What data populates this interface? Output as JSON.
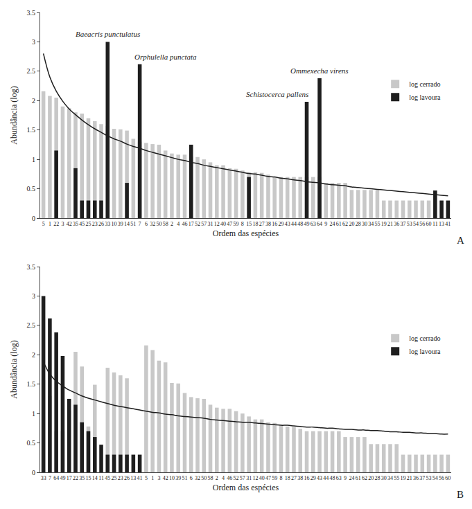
{
  "chart_data": [
    {
      "type": "bar",
      "title": "A",
      "x_label": "Ordem das espécies",
      "y_label": "Abundância (log)",
      "categories": [
        "5",
        "1",
        "22",
        "3",
        "42",
        "35",
        "45",
        "25",
        "23",
        "26",
        "33",
        "10",
        "39",
        "14",
        "51",
        "7",
        "6",
        "32",
        "50",
        "58",
        "2",
        "4",
        "46",
        "17",
        "52",
        "57",
        "31",
        "12",
        "40",
        "47",
        "59",
        "8",
        "15",
        "18",
        "27",
        "38",
        "16",
        "29",
        "43",
        "44",
        "48",
        "49",
        "63",
        "64",
        "9",
        "24",
        "61",
        "62",
        "20",
        "28",
        "30",
        "34",
        "55",
        "19",
        "21",
        "36",
        "37",
        "53",
        "54",
        "56",
        "60",
        "11",
        "13",
        "41"
      ],
      "series": [
        {
          "name": "log cerrado",
          "color": "#c8c8c8",
          "values": [
            2.16,
            2.08,
            2.05,
            1.9,
            1.87,
            1.8,
            1.78,
            1.7,
            1.65,
            1.6,
            1.57,
            1.52,
            1.51,
            1.49,
            1.35,
            1.3,
            1.28,
            1.26,
            1.25,
            1.15,
            1.1,
            1.08,
            1.08,
            1.05,
            1.04,
            1.0,
            0.95,
            0.9,
            0.9,
            0.85,
            0.84,
            0.81,
            0.78,
            0.78,
            0.77,
            0.74,
            0.7,
            0.7,
            0.7,
            0.7,
            0.7,
            0.7,
            0.7,
            0.7,
            0.6,
            0.6,
            0.6,
            0.6,
            0.48,
            0.48,
            0.48,
            0.48,
            0.48,
            0.3,
            0.3,
            0.3,
            0.3,
            0.3,
            0.3,
            0.3,
            0.3,
            0,
            0,
            0
          ]
        },
        {
          "name": "log lavoura",
          "color": "#1e1e1e",
          "values": [
            0,
            0,
            1.15,
            0,
            0,
            0.85,
            0.3,
            0.3,
            0.3,
            0.3,
            3.0,
            0,
            0,
            0.6,
            0,
            2.62,
            0,
            0,
            0,
            0,
            0,
            0,
            0,
            1.25,
            0,
            0,
            0,
            0,
            0,
            0,
            0,
            0,
            0.7,
            0,
            0,
            0,
            0,
            0,
            0,
            0,
            0,
            1.98,
            0,
            2.38,
            0,
            0,
            0,
            0,
            0,
            0,
            0,
            0,
            0,
            0,
            0,
            0,
            0,
            0,
            0,
            0,
            0,
            0.47,
            0.3,
            0.3
          ]
        },
        {
          "type": "line",
          "color": "#1e1e1e",
          "values": [
            2.8,
            2.4,
            2.16,
            1.99,
            1.86,
            1.76,
            1.67,
            1.59,
            1.52,
            1.46,
            1.4,
            1.35,
            1.31,
            1.26,
            1.22,
            1.19,
            1.15,
            1.12,
            1.09,
            1.06,
            1.03,
            1.0,
            0.98,
            0.95,
            0.93,
            0.9,
            0.88,
            0.86,
            0.84,
            0.82,
            0.8,
            0.78,
            0.76,
            0.75,
            0.73,
            0.71,
            0.7,
            0.68,
            0.67,
            0.65,
            0.64,
            0.62,
            0.61,
            0.6,
            0.58,
            0.57,
            0.56,
            0.55,
            0.53,
            0.52,
            0.51,
            0.5,
            0.49,
            0.48,
            0.47,
            0.46,
            0.45,
            0.44,
            0.43,
            0.42,
            0.41,
            0.4,
            0.39,
            0.38
          ]
        }
      ],
      "annotations": [
        {
          "text": "Baeacris punctulatus",
          "category": "33"
        },
        {
          "text": "Orphulella punctata",
          "category": "7"
        },
        {
          "text": "Schistocerca pallens",
          "category": "49"
        },
        {
          "text": "Ommexecha virens",
          "category": "64"
        }
      ],
      "ylim": [
        0,
        3.5
      ],
      "yticks": [
        0,
        0.5,
        1,
        1.5,
        2,
        2.5,
        3,
        3.5
      ],
      "grid": false,
      "legend": "right"
    },
    {
      "type": "bar",
      "title": "B",
      "x_label": "Ordem das espécies",
      "y_label": "Abundância (log)",
      "categories": [
        "33",
        "7",
        "64",
        "49",
        "17",
        "22",
        "35",
        "15",
        "14",
        "11",
        "45",
        "25",
        "23",
        "26",
        "13",
        "41",
        "5",
        "1",
        "3",
        "42",
        "10",
        "39",
        "51",
        "6",
        "32",
        "50",
        "58",
        "2",
        "4",
        "46",
        "52",
        "57",
        "31",
        "12",
        "40",
        "47",
        "59",
        "8",
        "18",
        "27",
        "38",
        "16",
        "29",
        "43",
        "44",
        "48",
        "63",
        "9",
        "24",
        "61",
        "62",
        "20",
        "28",
        "30",
        "34",
        "55",
        "19",
        "21",
        "36",
        "37",
        "53",
        "54",
        "56",
        "60"
      ],
      "series": [
        {
          "name": "log cerrado",
          "color": "#c8c8c8",
          "values": [
            1.57,
            1.3,
            0.7,
            0.7,
            1.05,
            2.05,
            1.8,
            0.78,
            1.49,
            0,
            1.78,
            1.7,
            1.65,
            1.6,
            0,
            0,
            2.16,
            2.08,
            1.9,
            1.87,
            1.52,
            1.51,
            1.35,
            1.28,
            1.26,
            1.25,
            1.15,
            1.1,
            1.08,
            1.08,
            1.04,
            1.0,
            0.95,
            0.9,
            0.9,
            0.85,
            0.84,
            0.81,
            0.78,
            0.77,
            0.74,
            0.7,
            0.7,
            0.7,
            0.7,
            0.7,
            0.7,
            0.6,
            0.6,
            0.6,
            0.6,
            0.48,
            0.48,
            0.48,
            0.48,
            0.48,
            0.3,
            0.3,
            0.3,
            0.3,
            0.3,
            0.3,
            0.3,
            0.3
          ]
        },
        {
          "name": "log lavoura",
          "color": "#1e1e1e",
          "values": [
            3.0,
            2.62,
            2.38,
            1.98,
            1.25,
            1.15,
            0.85,
            0.7,
            0.6,
            0.47,
            0.3,
            0.3,
            0.3,
            0.3,
            0.3,
            0.3,
            0,
            0,
            0,
            0,
            0,
            0,
            0,
            0,
            0,
            0,
            0,
            0,
            0,
            0,
            0,
            0,
            0,
            0,
            0,
            0,
            0,
            0,
            0,
            0,
            0,
            0,
            0,
            0,
            0,
            0,
            0,
            0,
            0,
            0,
            0,
            0,
            0,
            0,
            0,
            0,
            0,
            0,
            0,
            0,
            0,
            0,
            0,
            0
          ]
        },
        {
          "type": "line",
          "color": "#1e1e1e",
          "values": [
            1.88,
            1.67,
            1.55,
            1.47,
            1.4,
            1.35,
            1.3,
            1.26,
            1.23,
            1.2,
            1.17,
            1.14,
            1.12,
            1.1,
            1.08,
            1.06,
            1.04,
            1.02,
            1.01,
            0.99,
            0.98,
            0.96,
            0.95,
            0.94,
            0.93,
            0.92,
            0.9,
            0.89,
            0.88,
            0.87,
            0.86,
            0.85,
            0.85,
            0.84,
            0.83,
            0.82,
            0.81,
            0.8,
            0.8,
            0.79,
            0.78,
            0.77,
            0.77,
            0.76,
            0.75,
            0.75,
            0.74,
            0.73,
            0.73,
            0.72,
            0.72,
            0.71,
            0.71,
            0.7,
            0.69,
            0.69,
            0.68,
            0.68,
            0.67,
            0.67,
            0.66,
            0.66,
            0.65,
            0.65
          ]
        }
      ],
      "ylim": [
        0,
        3.5
      ],
      "yticks": [
        0,
        0.5,
        1,
        1.5,
        2,
        2.5,
        3,
        3.5
      ],
      "grid": false,
      "legend": "right"
    }
  ]
}
